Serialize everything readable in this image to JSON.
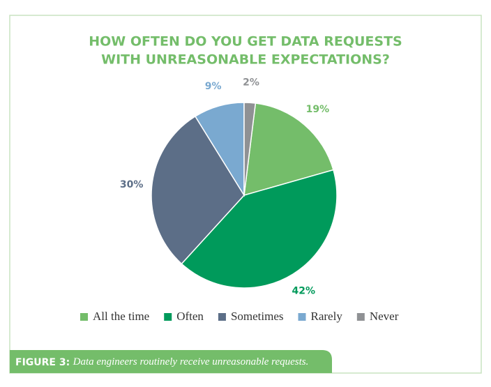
{
  "chart_data": {
    "type": "pie",
    "title": [
      "HOW OFTEN DO YOU GET DATA REQUESTS",
      "WITH UNREASONABLE EXPECTATIONS?"
    ],
    "categories": [
      "All the time",
      "Often",
      "Sometimes",
      "Rarely",
      "Never"
    ],
    "values": [
      19,
      42,
      30,
      9,
      2
    ],
    "value_labels": [
      "19%",
      "42%",
      "30%",
      "9%",
      "2%"
    ],
    "colors": [
      "#74bd6a",
      "#009a5b",
      "#5c6e87",
      "#7aa9d0",
      "#8f9194"
    ],
    "legend": "bottom"
  },
  "figure": {
    "label": "FIGURE 3:",
    "text": "Data engineers routinely receive unreasonable requests."
  }
}
